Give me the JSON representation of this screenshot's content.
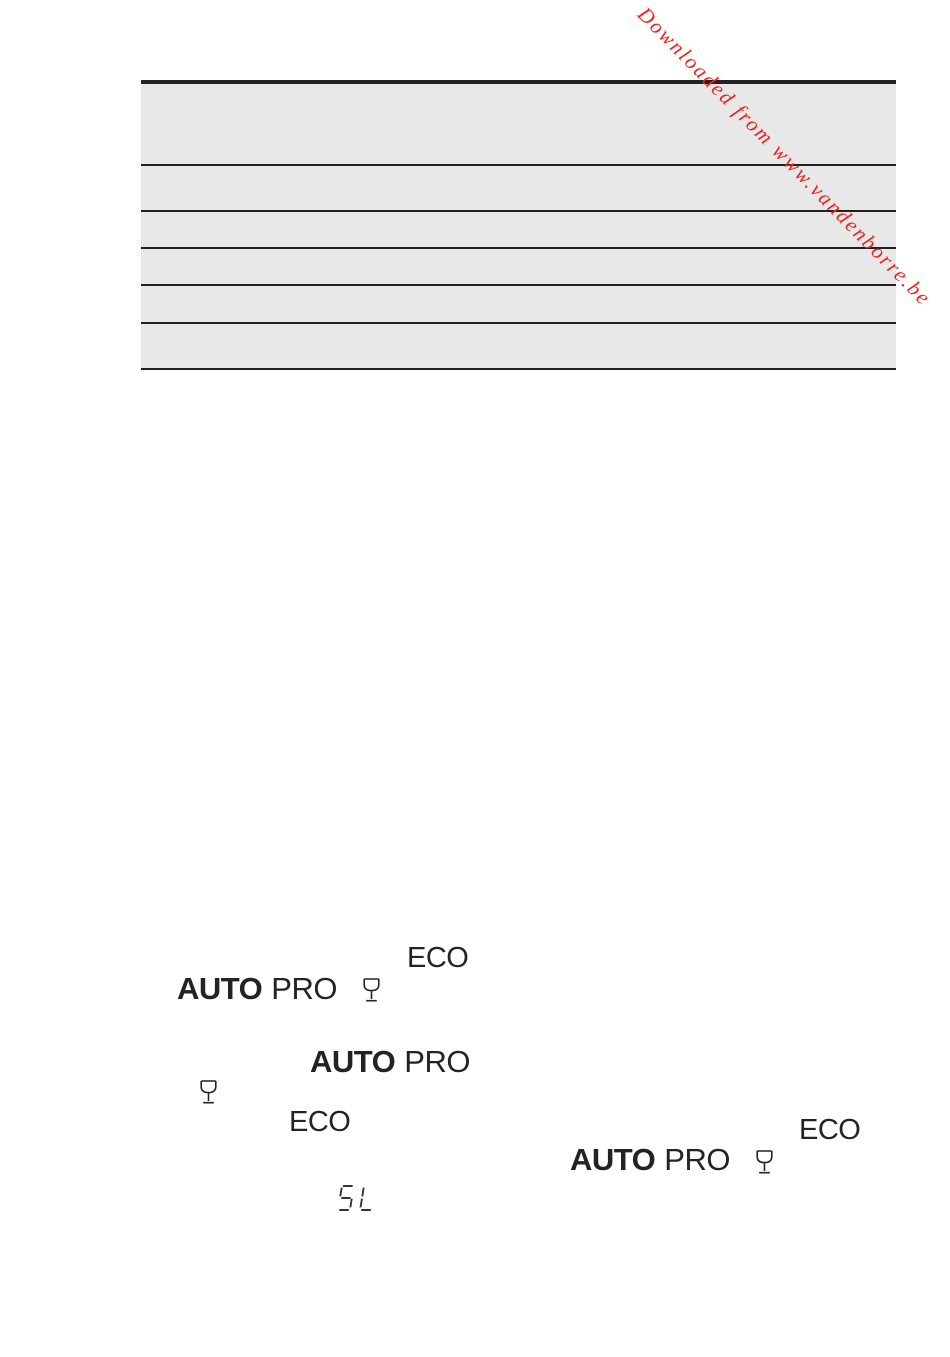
{
  "watermark": {
    "text": "Downloaded from www.vandenborre.be",
    "color": "#ee2222"
  },
  "program_table": {
    "row_fill": "#e8e8e8",
    "line_color": "#202020",
    "rows": [
      "",
      "",
      "",
      "",
      "",
      ""
    ]
  },
  "panel_groups": [
    {
      "eco": "ECO",
      "auto": "AUTO",
      "pro": "PRO",
      "glass_icon": "wine-glass-icon"
    },
    {
      "eco": "ECO",
      "auto": "AUTO",
      "pro": "PRO",
      "glass_icon": "wine-glass-icon"
    },
    {
      "eco": "ECO",
      "auto": "AUTO",
      "pro": "PRO",
      "glass_icon": "wine-glass-icon"
    }
  ],
  "display": {
    "value": "5L",
    "color": "#333333"
  }
}
